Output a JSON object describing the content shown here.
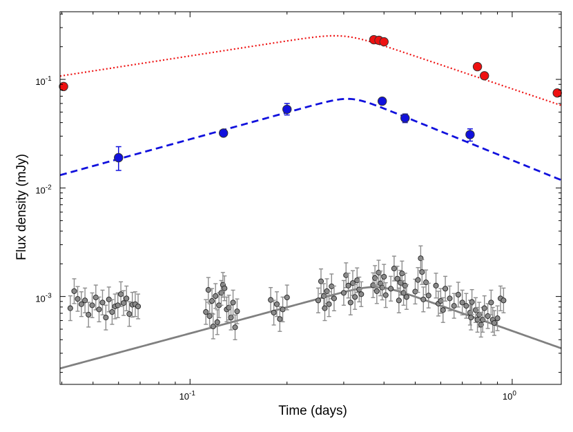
{
  "chart_data": {
    "type": "scatter",
    "title": "",
    "xlabel": "Time (days)",
    "ylabel": "Flux density (mJy)",
    "xscale": "log",
    "yscale": "log",
    "xlim": [
      0.0395,
      1.42
    ],
    "ylim": [
      0.000155,
      0.42
    ],
    "grid": false,
    "x_ticks": [
      {
        "value": 0.1,
        "base": "10",
        "exp": "-1"
      },
      {
        "value": 1,
        "base": "10",
        "exp": "0"
      }
    ],
    "y_ticks": [
      {
        "value": 0.001,
        "base": "10",
        "exp": "-3"
      },
      {
        "value": 0.01,
        "base": "10",
        "exp": "-2"
      },
      {
        "value": 0.1,
        "base": "10",
        "exp": "-1"
      }
    ],
    "colors": {
      "red": "#ee1111",
      "blue": "#1111dd",
      "gray": "#8a8a8a",
      "gray_line": "#808080"
    },
    "series": [
      {
        "name": "red",
        "color": "#ee1111",
        "points": [
          [
            0.0405,
            0.086
          ],
          [
            0.372,
            0.232
          ],
          [
            0.386,
            0.229
          ],
          [
            0.4,
            0.222
          ],
          [
            0.78,
            0.131
          ],
          [
            0.82,
            0.108
          ],
          [
            1.38,
            0.075
          ]
        ],
        "model": {
          "style": "dotted",
          "peak_t": 0.3,
          "peak_f": 0.25,
          "alpha_rise": 0.46,
          "alpha_decay": -1.0,
          "sharp": 8
        }
      },
      {
        "name": "blue",
        "color": "#1111dd",
        "points": [
          [
            0.06,
            0.019,
            0.024,
            0.0145
          ],
          [
            0.127,
            0.032,
            0.034,
            0.03
          ],
          [
            0.2,
            0.053,
            0.06,
            0.047
          ],
          [
            0.395,
            0.063,
            0.067,
            0.059
          ],
          [
            0.465,
            0.044,
            0.048,
            0.04
          ],
          [
            0.74,
            0.031,
            0.035,
            0.027
          ]
        ],
        "model": {
          "style": "dashed",
          "peak_t": 0.315,
          "peak_f": 0.066,
          "alpha_rise": 0.82,
          "alpha_decay": -1.2,
          "sharp": 8
        }
      },
      {
        "name": "gray",
        "color": "#8a8a8a",
        "points": [
          [
            0.0425,
            0.00078
          ],
          [
            0.0437,
            0.00112
          ],
          [
            0.0448,
            0.00095
          ],
          [
            0.046,
            0.00085
          ],
          [
            0.0472,
            0.00092
          ],
          [
            0.0484,
            0.00068
          ],
          [
            0.0497,
            0.00083
          ],
          [
            0.051,
            0.00098
          ],
          [
            0.0522,
            0.00076
          ],
          [
            0.0535,
            0.00088
          ],
          [
            0.0548,
            0.00064
          ],
          [
            0.056,
            0.00094
          ],
          [
            0.0573,
            0.00072
          ],
          [
            0.0585,
            0.00081
          ],
          [
            0.0597,
            0.00083
          ],
          [
            0.061,
            0.00105
          ],
          [
            0.0622,
            0.00087
          ],
          [
            0.0635,
            0.00096
          ],
          [
            0.0648,
            0.00069
          ],
          [
            0.0662,
            0.00084
          ],
          [
            0.0676,
            0.00085
          ],
          [
            0.069,
            0.00081
          ],
          [
            0.112,
            0.00072
          ],
          [
            0.114,
            0.00115
          ],
          [
            0.115,
            0.00066
          ],
          [
            0.117,
            0.00091
          ],
          [
            0.118,
            0.00053
          ],
          [
            0.12,
            0.00101
          ],
          [
            0.1215,
            0.00058
          ],
          [
            0.123,
            0.00083
          ],
          [
            0.125,
            0.00108
          ],
          [
            0.1265,
            0.00128
          ],
          [
            0.128,
            0.00119
          ],
          [
            0.13,
            0.00076
          ],
          [
            0.132,
            0.00079
          ],
          [
            0.134,
            0.00064
          ],
          [
            0.136,
            0.00088
          ],
          [
            0.138,
            0.00052
          ],
          [
            0.14,
            0.00073
          ],
          [
            0.178,
            0.00093
          ],
          [
            0.182,
            0.00071
          ],
          [
            0.186,
            0.00085
          ],
          [
            0.19,
            0.00062
          ],
          [
            0.194,
            0.00076
          ],
          [
            0.2,
            0.00098
          ],
          [
            0.25,
            0.00092
          ],
          [
            0.255,
            0.00138
          ],
          [
            0.26,
            0.00101
          ],
          [
            0.262,
            0.00078
          ],
          [
            0.266,
            0.00112
          ],
          [
            0.27,
            0.00085
          ],
          [
            0.275,
            0.00124
          ],
          [
            0.28,
            0.00096
          ],
          [
            0.3,
            0.00108
          ],
          [
            0.305,
            0.00157
          ],
          [
            0.31,
            0.00126
          ],
          [
            0.315,
            0.00088
          ],
          [
            0.32,
            0.00133
          ],
          [
            0.325,
            0.00099
          ],
          [
            0.33,
            0.00141
          ],
          [
            0.335,
            0.00116
          ],
          [
            0.34,
            0.00105
          ],
          [
            0.37,
            0.00127
          ],
          [
            0.375,
            0.00148
          ],
          [
            0.38,
            0.00112
          ],
          [
            0.385,
            0.00166
          ],
          [
            0.39,
            0.00132
          ],
          [
            0.395,
            0.00121
          ],
          [
            0.4,
            0.00152
          ],
          [
            0.405,
            0.00103
          ],
          [
            0.42,
            0.00118
          ],
          [
            0.43,
            0.00181
          ],
          [
            0.44,
            0.00146
          ],
          [
            0.445,
            0.00092
          ],
          [
            0.45,
            0.00134
          ],
          [
            0.455,
            0.00163
          ],
          [
            0.46,
            0.00108
          ],
          [
            0.465,
            0.00126
          ],
          [
            0.47,
            0.00099
          ],
          [
            0.5,
            0.00111
          ],
          [
            0.51,
            0.00142
          ],
          [
            0.52,
            0.00225
          ],
          [
            0.525,
            0.00168
          ],
          [
            0.53,
            0.00094
          ],
          [
            0.54,
            0.00135
          ],
          [
            0.55,
            0.00102
          ],
          [
            0.58,
            0.00126
          ],
          [
            0.59,
            0.00086
          ],
          [
            0.6,
            0.00091
          ],
          [
            0.61,
            0.00075
          ],
          [
            0.62,
            0.00118
          ],
          [
            0.64,
            0.00096
          ],
          [
            0.66,
            0.00082
          ],
          [
            0.68,
            0.00104
          ],
          [
            0.7,
            0.00088
          ],
          [
            0.72,
            0.00082
          ],
          [
            0.74,
            0.00071
          ],
          [
            0.745,
            0.00064
          ],
          [
            0.75,
            0.00089
          ],
          [
            0.77,
            0.00075
          ],
          [
            0.78,
            0.00061
          ],
          [
            0.79,
            0.00068
          ],
          [
            0.8,
            0.00055
          ],
          [
            0.81,
            0.00061
          ],
          [
            0.82,
            0.00078
          ],
          [
            0.84,
            0.00066
          ],
          [
            0.86,
            0.00088
          ],
          [
            0.87,
            0.00061
          ],
          [
            0.88,
            0.00057
          ],
          [
            0.9,
            0.00063
          ],
          [
            0.92,
            0.00096
          ],
          [
            0.94,
            0.00092
          ]
        ],
        "model": {
          "style": "solid",
          "peak_t": 0.38,
          "peak_f": 0.00122,
          "alpha_rise": 0.8,
          "alpha_decay": -1.05,
          "sharp": 8
        }
      }
    ]
  }
}
